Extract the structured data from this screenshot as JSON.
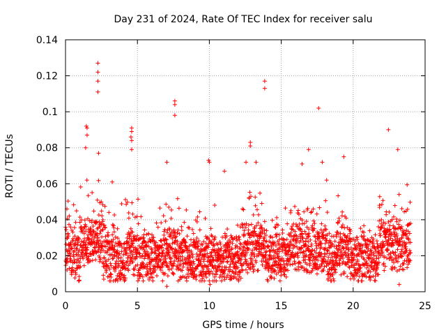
{
  "chart_data": {
    "type": "scatter",
    "title": "Day 231 of 2024, Rate Of TEC Index for receiver salu",
    "xlabel": "GPS time / hours",
    "ylabel": "ROTI / TECUs",
    "xlim": [
      0,
      25
    ],
    "ylim": [
      0,
      0.14
    ],
    "grid": true,
    "marker": "plus",
    "series_color": "#ff0000",
    "x_ticks": [
      0,
      5,
      10,
      15,
      20,
      25
    ],
    "x_tick_labels": [
      "0",
      "5",
      "10",
      "15",
      "20",
      "25"
    ],
    "y_ticks": [
      0,
      0.02,
      0.04,
      0.06,
      0.08,
      0.1,
      0.12,
      0.14
    ],
    "y_tick_labels": [
      "0",
      "0.02",
      "0.04",
      "0.06",
      "0.08",
      "0.1",
      "0.12",
      "0.14"
    ],
    "data_range": {
      "x": [
        0,
        24
      ],
      "y_typical": [
        0.005,
        0.05
      ],
      "y_max": 0.127
    },
    "outliers": [
      {
        "x": 2.25,
        "y": 0.127
      },
      {
        "x": 2.25,
        "y": 0.122
      },
      {
        "x": 2.25,
        "y": 0.117
      },
      {
        "x": 2.25,
        "y": 0.111
      },
      {
        "x": 13.85,
        "y": 0.117
      },
      {
        "x": 13.85,
        "y": 0.113
      },
      {
        "x": 7.6,
        "y": 0.106
      },
      {
        "x": 7.6,
        "y": 0.104
      },
      {
        "x": 7.6,
        "y": 0.098
      },
      {
        "x": 17.6,
        "y": 0.102
      },
      {
        "x": 1.45,
        "y": 0.092
      },
      {
        "x": 1.5,
        "y": 0.091
      },
      {
        "x": 1.5,
        "y": 0.087
      },
      {
        "x": 4.6,
        "y": 0.091
      },
      {
        "x": 4.6,
        "y": 0.089
      },
      {
        "x": 4.55,
        "y": 0.086
      },
      {
        "x": 4.6,
        "y": 0.084
      },
      {
        "x": 4.6,
        "y": 0.079
      },
      {
        "x": 22.45,
        "y": 0.09
      },
      {
        "x": 12.85,
        "y": 0.083
      },
      {
        "x": 12.85,
        "y": 0.081
      },
      {
        "x": 23.1,
        "y": 0.079
      },
      {
        "x": 16.9,
        "y": 0.079
      },
      {
        "x": 1.4,
        "y": 0.08
      },
      {
        "x": 2.3,
        "y": 0.077
      },
      {
        "x": 19.35,
        "y": 0.075
      },
      {
        "x": 9.95,
        "y": 0.073
      },
      {
        "x": 7.05,
        "y": 0.072
      },
      {
        "x": 10.0,
        "y": 0.072
      },
      {
        "x": 12.55,
        "y": 0.072
      },
      {
        "x": 13.25,
        "y": 0.072
      },
      {
        "x": 17.85,
        "y": 0.072
      },
      {
        "x": 16.45,
        "y": 0.071
      },
      {
        "x": 11.05,
        "y": 0.067
      },
      {
        "x": 3.25,
        "y": 0.061
      },
      {
        "x": 10.05,
        "y": 0.004
      },
      {
        "x": 7.05,
        "y": 0.003
      },
      {
        "x": 23.2,
        "y": 0.004
      },
      {
        "x": 0.1,
        "y": 0.046
      }
    ]
  }
}
